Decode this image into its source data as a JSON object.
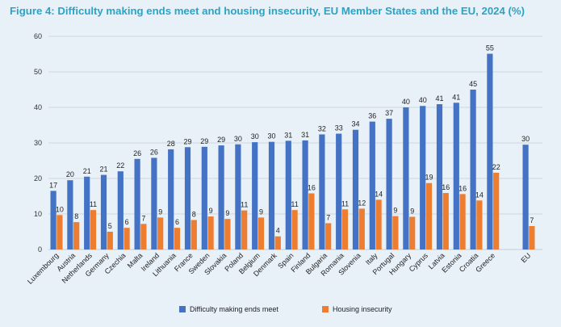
{
  "chart_data": {
    "type": "bar",
    "title": "Figure 4: Difficulty making ends meet and housing insecurity, EU Member States and the EU, 2024 (%)",
    "categories": [
      "Luxembourg",
      "Austria",
      "Netherlands",
      "Germany",
      "Czechia",
      "Malta",
      "Ireland",
      "Lithuania",
      "France",
      "Sweden",
      "Slovakia",
      "Poland",
      "Belgium",
      "Denmark",
      "Spain",
      "Finland",
      "Bulgaria",
      "Romania",
      "Slovenia",
      "Italy",
      "Portugal",
      "Hungary",
      "Cyprus",
      "Latvia",
      "Estonia",
      "Croatia",
      "Greece",
      "EU"
    ],
    "series": [
      {
        "name": "Difficulty making ends meet",
        "color": "#4472c4",
        "values": [
          16.5,
          19.5,
          20.5,
          21,
          22,
          25.5,
          25.8,
          28.2,
          28.8,
          28.9,
          29.3,
          29.6,
          30.2,
          30.3,
          30.6,
          30.7,
          32.4,
          32.6,
          33.7,
          36,
          36.8,
          40,
          40.4,
          40.9,
          41.3,
          45,
          55.1,
          29.5
        ],
        "labels": [
          "17",
          "20",
          "21",
          "21",
          "22",
          "26",
          "26",
          "28",
          "29",
          "29",
          "29",
          "30",
          "30",
          "30",
          "31",
          "31",
          "32",
          "33",
          "34",
          "36",
          "37",
          "40",
          "40",
          "41",
          "41",
          "45",
          "55",
          "30"
        ]
      },
      {
        "name": "Housing insecurity",
        "color": "#ed7d31",
        "values": [
          9.7,
          7.7,
          11.1,
          5,
          6.1,
          7.2,
          9,
          6.1,
          8.3,
          9.3,
          8.6,
          11,
          9,
          3.7,
          11.1,
          15.8,
          7.4,
          11.3,
          11.5,
          14,
          9.4,
          9.2,
          18.7,
          15.9,
          15.6,
          13.8,
          21.6,
          6.6
        ],
        "labels": [
          "10",
          "8",
          "11",
          "5",
          "6",
          "7",
          "9",
          "6",
          "8",
          "9",
          "9",
          "11",
          "9",
          "4",
          "11",
          "16",
          "7",
          "11",
          "12",
          "14",
          "9",
          "9",
          "19",
          "16",
          "16",
          "14",
          "22",
          "7"
        ]
      }
    ],
    "ylim": [
      0,
      60
    ],
    "yticks": [
      0,
      10,
      20,
      30,
      40,
      50,
      60
    ],
    "grid": true,
    "legend": "bottom"
  }
}
